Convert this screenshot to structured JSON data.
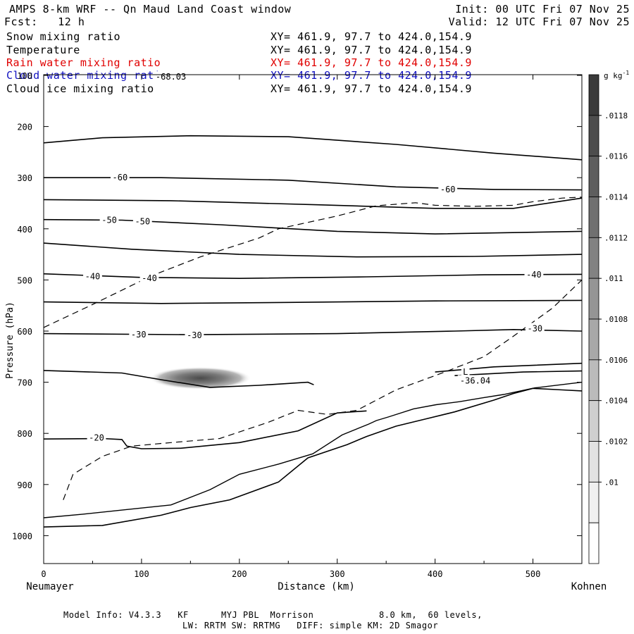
{
  "header": {
    "title": "AMPS 8-km WRF -- Qn Maud Land Coast window",
    "init": "Init: 00 UTC Fri 07 Nov 25",
    "fcst": "Fcst:   12 h",
    "valid": "Valid: 12 UTC Fri 07 Nov 25"
  },
  "fields": [
    {
      "label": "Snow mixing ratio",
      "xy": "XY= 461.9, 97.7 to 424.0,154.9",
      "color": "#000000"
    },
    {
      "label": "Temperature",
      "xy": "XY= 461.9, 97.7 to 424.0,154.9",
      "color": "#000000"
    },
    {
      "label": "Rain water mixing ratio",
      "xy": "XY= 461.9, 97.7 to 424.0,154.9",
      "color": "#e00000"
    },
    {
      "label": "Cloud water mixing ratio",
      "xy": "XY= 461.9, 97.7 to 424.0,154.9",
      "color": "#1010c0"
    },
    {
      "label": "Cloud ice mixing ratio",
      "xy": "XY= 461.9, 97.7 to 424.0,154.9",
      "color": "#000000"
    }
  ],
  "footer": {
    "line1": "Model Info: V4.3.3   KF      MYJ PBL  Morrison            8.0 km,  60 levels,",
    "line2": "LW: RRTM SW: RRTMG   DIFF: simple KM: 2D Smagor"
  },
  "chart_data": {
    "type": "contour",
    "xlabel": "Distance (km)",
    "ylabel": "Pressure (hPa)",
    "x_left_label": "Neumayer",
    "x_right_label": "Kohnen",
    "xlim": [
      0,
      550
    ],
    "ylim": [
      1050,
      100
    ],
    "xticks": [
      0,
      100,
      200,
      300,
      400,
      500
    ],
    "yticks": [
      100,
      200,
      300,
      400,
      500,
      600,
      700,
      800,
      900,
      1000
    ],
    "colorbar": {
      "unit": "g kg",
      "unit_exp": "-1",
      "ticks": [
        ".0118",
        ".0116",
        ".0114",
        ".0112",
        ".011",
        ".0108",
        ".0106",
        ".0104",
        ".0102",
        ".01"
      ],
      "colors": [
        "#3a3a3a",
        "#4d4d4d",
        "#5e5e5e",
        "#707070",
        "#828282",
        "#959595",
        "#a8a8a8",
        "#bbbbbb",
        "#cfcfcf",
        "#e2e2e2",
        "#f0f0f0",
        "#ffffff"
      ]
    },
    "contour_labels": [
      {
        "text": "-68.03",
        "x": 130,
        "p": 103
      },
      {
        "text": "-60",
        "x": 78,
        "p": 300
      },
      {
        "text": "-60",
        "x": 413,
        "p": 323
      },
      {
        "text": "-50",
        "x": 67,
        "p": 383
      },
      {
        "text": "-50",
        "x": 101,
        "p": 386
      },
      {
        "text": "-40",
        "x": 50,
        "p": 493
      },
      {
        "text": "-40",
        "x": 108,
        "p": 497
      },
      {
        "text": "-40",
        "x": 501,
        "p": 490
      },
      {
        "text": "-30",
        "x": 97,
        "p": 607
      },
      {
        "text": "-30",
        "x": 154,
        "p": 608
      },
      {
        "text": "-30",
        "x": 502,
        "p": 595
      },
      {
        "text": "-20",
        "x": 54,
        "p": 809
      },
      {
        "text": "L",
        "x": 431,
        "p": 680
      },
      {
        "text": "-36.04",
        "x": 441,
        "p": 697
      }
    ],
    "temperature_contours": [
      {
        "level": -60,
        "points": [
          [
            0,
            232
          ],
          [
            60,
            222
          ],
          [
            150,
            218
          ],
          [
            250,
            220
          ],
          [
            360,
            235
          ],
          [
            460,
            252
          ],
          [
            550,
            265
          ]
        ]
      },
      {
        "level": -60,
        "points": [
          [
            0,
            300
          ],
          [
            120,
            300
          ],
          [
            250,
            305
          ],
          [
            360,
            318
          ],
          [
            460,
            323
          ],
          [
            550,
            324
          ]
        ]
      },
      {
        "level": -60,
        "points": [
          [
            0,
            343
          ],
          [
            130,
            345
          ],
          [
            280,
            353
          ],
          [
            400,
            360
          ],
          [
            480,
            360
          ],
          [
            550,
            340
          ]
        ]
      },
      {
        "level": -50,
        "points": [
          [
            0,
            382
          ],
          [
            80,
            383
          ],
          [
            180,
            392
          ],
          [
            300,
            405
          ],
          [
            400,
            410
          ],
          [
            550,
            405
          ]
        ]
      },
      {
        "level": -50,
        "points": [
          [
            0,
            428
          ],
          [
            90,
            440
          ],
          [
            200,
            450
          ],
          [
            320,
            455
          ],
          [
            440,
            454
          ],
          [
            550,
            450
          ]
        ]
      },
      {
        "level": -40,
        "points": [
          [
            0,
            488
          ],
          [
            100,
            495
          ],
          [
            200,
            497
          ],
          [
            330,
            494
          ],
          [
            450,
            490
          ],
          [
            550,
            489
          ]
        ]
      },
      {
        "level": -40,
        "points": [
          [
            0,
            543
          ],
          [
            120,
            546
          ],
          [
            250,
            544
          ],
          [
            400,
            541
          ],
          [
            550,
            540
          ]
        ]
      },
      {
        "level": -30,
        "points": [
          [
            0,
            605
          ],
          [
            150,
            607
          ],
          [
            300,
            605
          ],
          [
            420,
            600
          ],
          [
            480,
            597
          ],
          [
            550,
            600
          ]
        ]
      },
      {
        "level": -30,
        "points": [
          [
            0,
            677
          ],
          [
            80,
            682
          ],
          [
            120,
            695
          ],
          [
            170,
            710
          ],
          [
            220,
            706
          ],
          [
            270,
            700
          ],
          [
            276,
            705
          ]
        ]
      },
      {
        "level": -20,
        "points": [
          [
            0,
            811
          ],
          [
            60,
            810
          ],
          [
            80,
            812
          ],
          [
            85,
            825
          ],
          [
            100,
            830
          ],
          [
            140,
            829
          ],
          [
            200,
            818
          ],
          [
            260,
            795
          ],
          [
            300,
            760
          ],
          [
            330,
            756
          ]
        ]
      },
      {
        "level": -30,
        "points": [
          [
            400,
            680
          ],
          [
            460,
            670
          ],
          [
            550,
            663
          ]
        ]
      },
      {
        "level": -30,
        "points": [
          [
            420,
            687
          ],
          [
            490,
            680
          ],
          [
            550,
            678
          ]
        ]
      }
    ],
    "freezing_line_dashed": [
      [
        0,
        593
      ],
      [
        50,
        548
      ],
      [
        110,
        492
      ],
      [
        160,
        455
      ],
      [
        220,
        418
      ],
      [
        240,
        400
      ],
      [
        300,
        375
      ],
      [
        340,
        355
      ],
      [
        380,
        349
      ],
      [
        400,
        354
      ],
      [
        440,
        356
      ],
      [
        480,
        354
      ],
      [
        500,
        347
      ],
      [
        530,
        340
      ],
      [
        550,
        338
      ]
    ],
    "freezing_line_dashed_2": [
      [
        20,
        930
      ],
      [
        30,
        880
      ],
      [
        60,
        845
      ],
      [
        90,
        825
      ],
      [
        130,
        818
      ],
      [
        180,
        810
      ],
      [
        230,
        778
      ],
      [
        260,
        755
      ],
      [
        290,
        763
      ],
      [
        320,
        755
      ],
      [
        360,
        715
      ],
      [
        410,
        680
      ],
      [
        450,
        650
      ],
      [
        480,
        610
      ],
      [
        520,
        555
      ],
      [
        550,
        500
      ]
    ],
    "terrain": [
      [
        0,
        983
      ],
      [
        60,
        980
      ],
      [
        120,
        960
      ],
      [
        150,
        945
      ],
      [
        190,
        930
      ],
      [
        240,
        895
      ],
      [
        270,
        848
      ],
      [
        310,
        822
      ],
      [
        330,
        806
      ],
      [
        360,
        786
      ],
      [
        390,
        772
      ],
      [
        420,
        758
      ],
      [
        460,
        735
      ],
      [
        480,
        722
      ],
      [
        500,
        712
      ],
      [
        530,
        715
      ],
      [
        550,
        717
      ]
    ],
    "terrain_upper": [
      [
        0,
        965
      ],
      [
        40,
        958
      ],
      [
        80,
        950
      ],
      [
        130,
        940
      ],
      [
        170,
        910
      ],
      [
        200,
        880
      ],
      [
        240,
        860
      ],
      [
        275,
        840
      ],
      [
        305,
        803
      ],
      [
        332,
        782
      ],
      [
        340,
        775
      ],
      [
        352,
        768
      ],
      [
        378,
        752
      ],
      [
        401,
        744
      ],
      [
        425,
        738
      ],
      [
        447,
        731
      ],
      [
        470,
        724
      ],
      [
        502,
        711
      ],
      [
        550,
        700
      ]
    ],
    "cloud_blob": {
      "x_center": 160,
      "p_center": 692,
      "x_radius": 52,
      "p_radius": 22
    }
  }
}
